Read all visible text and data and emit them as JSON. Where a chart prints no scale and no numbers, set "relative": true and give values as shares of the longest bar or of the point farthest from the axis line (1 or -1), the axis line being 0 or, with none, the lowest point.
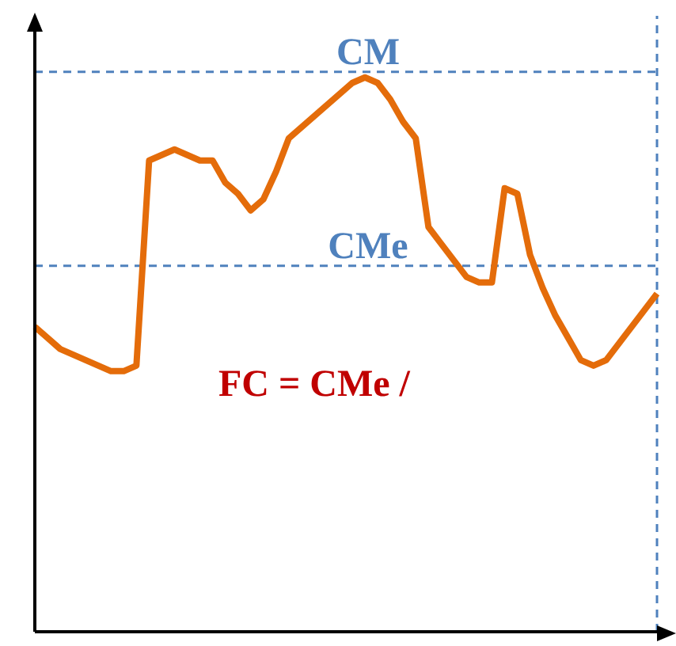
{
  "chart_data": {
    "type": "line",
    "relative": true,
    "categories": [
      null,
      null,
      null,
      null,
      null,
      null,
      null,
      null,
      null,
      null,
      null,
      null,
      null,
      null,
      null,
      null,
      null,
      null,
      null,
      null,
      null,
      null,
      null,
      null,
      null,
      null,
      null,
      null,
      null,
      null,
      null,
      null,
      null,
      null,
      null,
      null,
      null,
      null,
      null,
      null,
      null,
      null,
      null,
      null,
      null,
      null,
      null,
      null,
      null,
      null
    ],
    "series": [
      {
        "color": "#e46c0a",
        "values": [
          0.55,
          0.53,
          0.51,
          0.5,
          0.49,
          0.48,
          0.47,
          0.47,
          0.48,
          0.85,
          0.86,
          0.87,
          0.86,
          0.85,
          0.85,
          0.81,
          0.79,
          0.76,
          0.78,
          0.83,
          0.89,
          0.91,
          0.93,
          0.95,
          0.97,
          0.99,
          1,
          0.99,
          0.96,
          0.92,
          0.89,
          0.73,
          0.7,
          0.67,
          0.64,
          0.63,
          0.63,
          0.8,
          0.79,
          0.68,
          0.62,
          0.57,
          0.53,
          0.49,
          0.48,
          0.49,
          0.52,
          0.55,
          0.58,
          0.61
        ]
      }
    ],
    "ref_lines": [
      {
        "axis": "y",
        "value": 1.01,
        "label": "CM",
        "color": "#4f81bd",
        "line_style": "dashed"
      },
      {
        "axis": "y",
        "value": 0.66,
        "label": "CMe",
        "color": "#4f81bd",
        "line_style": "dashed"
      }
    ],
    "annotations": [
      "FC = CMe /"
    ],
    "grid": false,
    "legend": false,
    "marker": "none",
    "line_style": "solid"
  }
}
